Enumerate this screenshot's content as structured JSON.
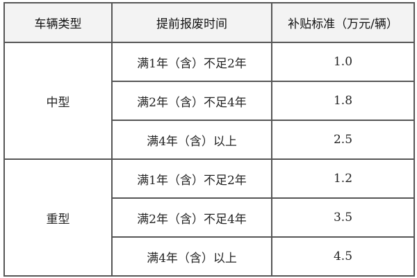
{
  "headers": [
    "车辆类型",
    "提前报废时间",
    "补贴标准（万元/辆）"
  ],
  "groups": [
    {
      "type": "中型",
      "rows": [
        {
          "period": "满1年（含）不足2年",
          "subsidy": "1.0"
        },
        {
          "period": "满2年（含）不足4年",
          "subsidy": "1.8"
        },
        {
          "period": "满4年（含）以上",
          "subsidy": "2.5"
        }
      ]
    },
    {
      "type": "重型",
      "rows": [
        {
          "period": "满1年（含）不足2年",
          "subsidy": "1.2"
        },
        {
          "period": "满2年（含）不足4年",
          "subsidy": "3.5"
        },
        {
          "period": "满4年（含）以上",
          "subsidy": "4.5"
        }
      ]
    }
  ]
}
